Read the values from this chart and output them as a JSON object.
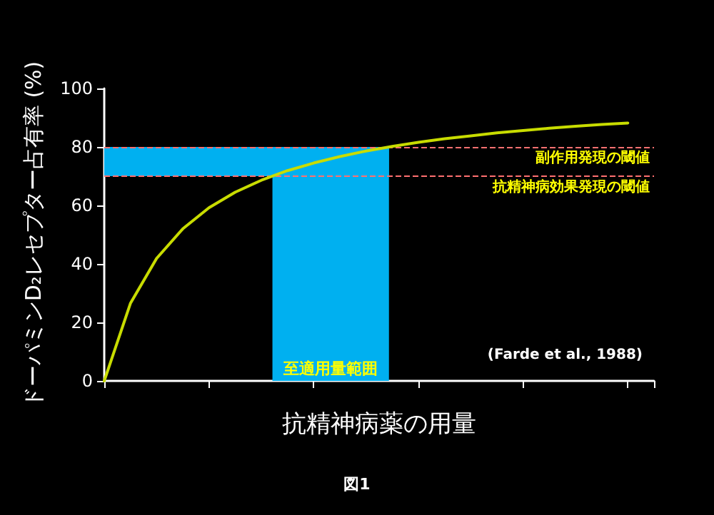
{
  "chart_data": {
    "type": "line",
    "xlabel": "抗精神病薬の用量",
    "ylabel": "ドーパミンD₂レセプター占有率 (%)",
    "categories": [
      null,
      null,
      null,
      null,
      null,
      null,
      null,
      null,
      null,
      null,
      null,
      null,
      null,
      null,
      null,
      null,
      null,
      null,
      null,
      null,
      null,
      null
    ],
    "series": [
      {
        "color": "#c8dc00",
        "values": [
          0,
          26.5,
          41.9,
          52.0,
          59.2,
          64.5,
          68.6,
          71.9,
          74.5,
          76.7,
          78.6,
          80.2,
          81.6,
          82.8,
          83.8,
          84.8,
          85.6,
          86.4,
          87.1,
          87.7,
          88.2,
          null
        ]
      }
    ],
    "ylim": [
      0,
      100
    ],
    "yticks": [
      0,
      20,
      40,
      60,
      80,
      100
    ],
    "tick_labels": "y",
    "grid": false,
    "marker": "none",
    "line_style": "solid",
    "bands": [
      {
        "axis": "y",
        "from": 70,
        "to": 80,
        "color": "#00b0f0"
      },
      {
        "axis": "y",
        "from": 0,
        "to": 80,
        "label": "至適用量範囲",
        "color": "#00b0f0"
      }
    ],
    "ref_lines": [
      {
        "axis": "y",
        "value": 80,
        "label": "副作用発現の閾値",
        "color": "#ff7070",
        "line_style": "dashed"
      },
      {
        "axis": "y",
        "value": 70,
        "label": "抗精神病効果発現の閾値",
        "color": "#ff7070",
        "line_style": "dashed"
      }
    ],
    "annotations": [
      "(Farde et al., 1988)",
      "図1"
    ]
  }
}
